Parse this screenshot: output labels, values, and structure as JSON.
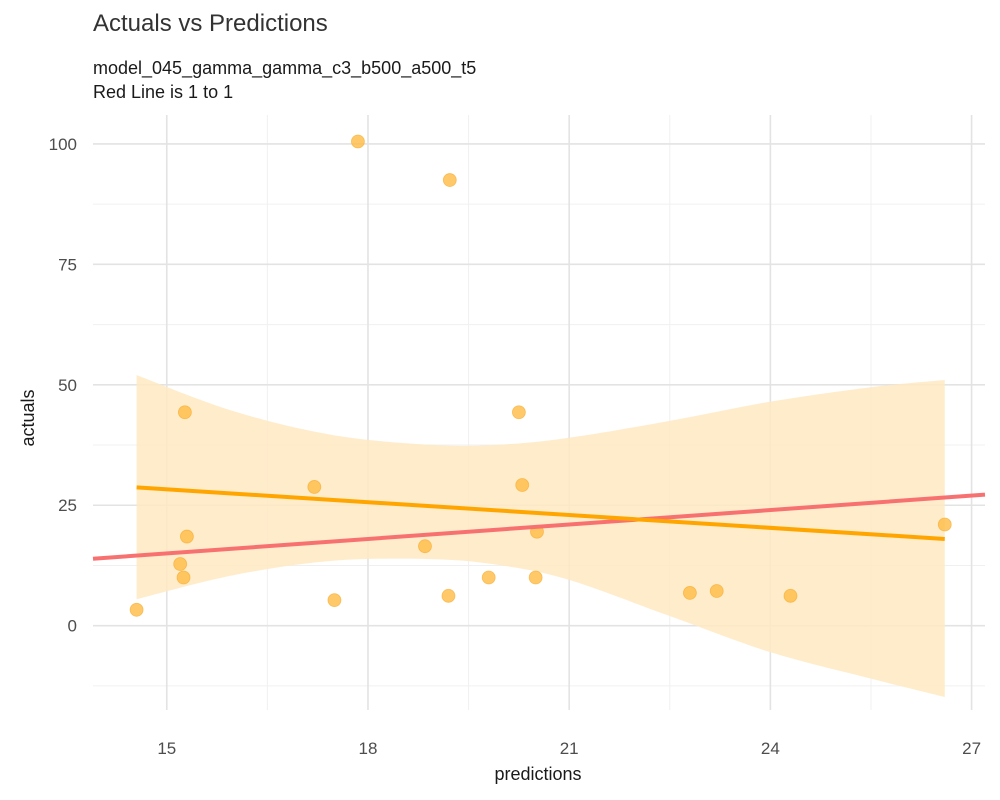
{
  "chart_data": {
    "type": "scatter",
    "title": "Actuals vs Predictions",
    "subtitle": [
      "model_045_gamma_gamma_c3_b500_a500_t5",
      "Red Line is 1 to 1"
    ],
    "xlabel": "predictions",
    "ylabel": "actuals",
    "xlim": [
      13.9,
      27.2
    ],
    "ylim": [
      -17.5,
      106
    ],
    "x_ticks": [
      15,
      18,
      21,
      24,
      27
    ],
    "x_minor_ticks": [
      16.5,
      19.5,
      22.5,
      25.5
    ],
    "y_ticks": [
      0,
      25,
      50,
      75,
      100
    ],
    "y_minor_ticks": [
      -12.5,
      12.5,
      37.5,
      62.5,
      87.5
    ],
    "grid": true,
    "points": [
      {
        "x": 14.55,
        "y": 3.3
      },
      {
        "x": 15.2,
        "y": 12.8
      },
      {
        "x": 15.25,
        "y": 10.0
      },
      {
        "x": 15.27,
        "y": 44.3
      },
      {
        "x": 15.3,
        "y": 18.5
      },
      {
        "x": 17.2,
        "y": 28.8
      },
      {
        "x": 17.5,
        "y": 5.3
      },
      {
        "x": 17.85,
        "y": 100.5
      },
      {
        "x": 18.85,
        "y": 16.5
      },
      {
        "x": 19.2,
        "y": 6.2
      },
      {
        "x": 19.22,
        "y": 92.5
      },
      {
        "x": 19.8,
        "y": 10.0
      },
      {
        "x": 20.25,
        "y": 44.3
      },
      {
        "x": 20.3,
        "y": 29.2
      },
      {
        "x": 20.5,
        "y": 10.0
      },
      {
        "x": 20.52,
        "y": 19.5
      },
      {
        "x": 22.8,
        "y": 6.8
      },
      {
        "x": 23.2,
        "y": 7.2
      },
      {
        "x": 24.3,
        "y": 6.2
      },
      {
        "x": 26.6,
        "y": 21.0
      }
    ],
    "identity_line": {
      "from": 13.9,
      "to": 27.2,
      "color": "#f87171"
    },
    "fit_line": {
      "x": [
        14.55,
        26.6
      ],
      "y": [
        28.7,
        18.0
      ],
      "color": "#ffa500"
    },
    "confidence_band": {
      "x": [
        14.55,
        16.0,
        17.5,
        19.0,
        20.0,
        21.0,
        22.5,
        24.0,
        25.5,
        26.6
      ],
      "upper": [
        52.0,
        44.5,
        39.5,
        37.5,
        37.6,
        39.0,
        42.5,
        46.5,
        49.5,
        51.0
      ],
      "lower": [
        5.5,
        10.5,
        13.5,
        13.8,
        12.5,
        9.5,
        2.0,
        -5.5,
        -11.0,
        -14.8
      ]
    },
    "point_color": "#ffbb44",
    "band_color": "#ffe9c2"
  }
}
